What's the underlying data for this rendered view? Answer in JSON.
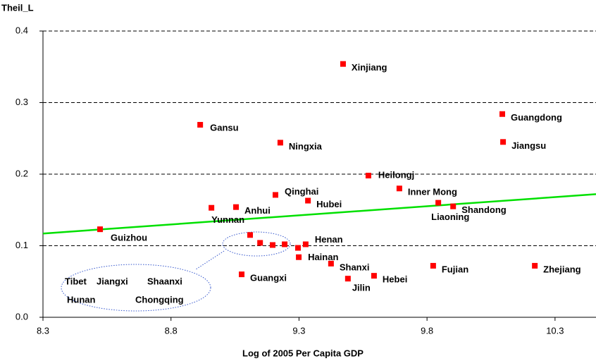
{
  "chart_data": {
    "type": "scatter",
    "y_label": "Theil_L",
    "x_label": "Log of 2005 Per Capita GDP",
    "xlim": [
      8.3,
      10.46
    ],
    "ylim": [
      0,
      0.4
    ],
    "xticks": [
      8.3,
      8.8,
      9.3,
      9.8,
      10.3
    ],
    "yticks": [
      {
        "value": 0,
        "label": "0.0"
      },
      0.1,
      0.2,
      0.3,
      0.4
    ],
    "grid": true,
    "color": "#ff0000",
    "points": [
      {
        "label": "Xinjiang",
        "x": 9.472,
        "y": 0.354
      },
      {
        "label": "Guangdong",
        "x": 10.094,
        "y": 0.284
      },
      {
        "label": "Jiangsu",
        "x": 10.097,
        "y": 0.245
      },
      {
        "label": "Gansu",
        "x": 8.914,
        "y": 0.269
      },
      {
        "label": "Ningxia",
        "x": 9.227,
        "y": 0.244
      },
      {
        "label": "Heilongj",
        "x": 9.571,
        "y": 0.198
      },
      {
        "label": "Inner Mong",
        "x": 9.692,
        "y": 0.18
      },
      {
        "label": "Qinghai",
        "x": 9.208,
        "y": 0.171
      },
      {
        "label": "Hubei",
        "x": 9.335,
        "y": 0.163
      },
      {
        "label": "Shandong",
        "x": 9.902,
        "y": 0.155
      },
      {
        "label": "Liaoning",
        "x": 9.844,
        "y": 0.16
      },
      {
        "label": "Yunnan",
        "x": 8.958,
        "y": 0.153
      },
      {
        "label": "Anhui",
        "x": 9.054,
        "y": 0.154
      },
      {
        "label": "Guizhou",
        "x": 8.523,
        "y": 0.123
      },
      {
        "label": "Henan",
        "x": 9.326,
        "y": 0.102
      },
      {
        "label": "Hainan",
        "x": 9.299,
        "y": 0.084
      },
      {
        "label": "Shanxi",
        "x": 9.425,
        "y": 0.075
      },
      {
        "label": "Jilin",
        "x": 9.491,
        "y": 0.054
      },
      {
        "label": "Hebei",
        "x": 9.593,
        "y": 0.058
      },
      {
        "label": "Fujian",
        "x": 9.824,
        "y": 0.072
      },
      {
        "label": "Zhejiang",
        "x": 10.221,
        "y": 0.072
      },
      {
        "label": "Guangxi",
        "x": 9.076,
        "y": 0.06
      },
      {
        "label": "Tibet",
        "x": 9.109,
        "y": 0.115
      },
      {
        "label": "Jiangxi",
        "x": 9.148,
        "y": 0.104
      },
      {
        "label": "Shaanxi",
        "x": 9.197,
        "y": 0.101
      },
      {
        "label": "Hunan",
        "x": 9.244,
        "y": 0.102
      },
      {
        "label": "Chongqing",
        "x": 9.296,
        "y": 0.097
      }
    ],
    "trendline": {
      "color": "#00e000",
      "x": [
        8.3,
        10.46
      ],
      "y": [
        0.117,
        0.172
      ]
    }
  }
}
